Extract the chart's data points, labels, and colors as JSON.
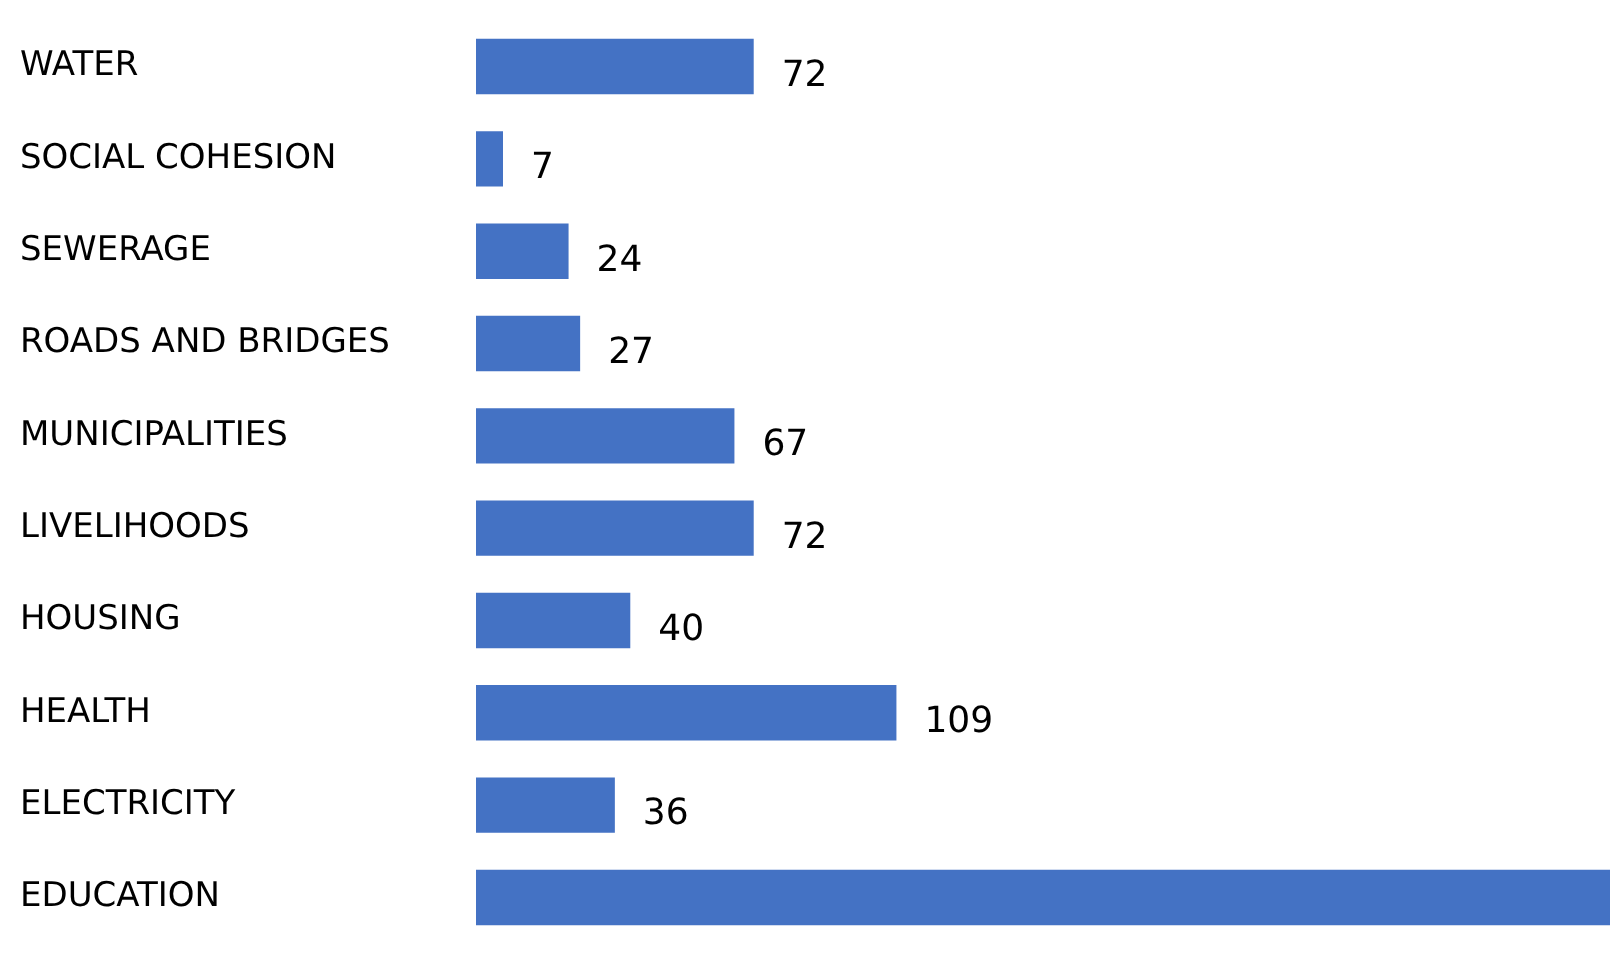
{
  "chart_data": {
    "type": "bar",
    "orientation": "horizontal",
    "categories": [
      "WATER",
      "SOCIAL COHESION",
      "SEWERAGE",
      "ROADS AND BRIDGES",
      "MUNICIPALITIES",
      "LIVELIHOODS",
      "HOUSING",
      "HEALTH",
      "ELECTRICITY",
      "EDUCATION"
    ],
    "values": [
      72,
      7,
      24,
      27,
      67,
      72,
      40,
      109,
      36,
      294
    ],
    "value_labels": [
      "72",
      "7",
      "24",
      "27",
      "67",
      "72",
      "40",
      "109",
      "36",
      null
    ],
    "color": "#4472c4",
    "tick_labels": "y",
    "legend": false
  }
}
